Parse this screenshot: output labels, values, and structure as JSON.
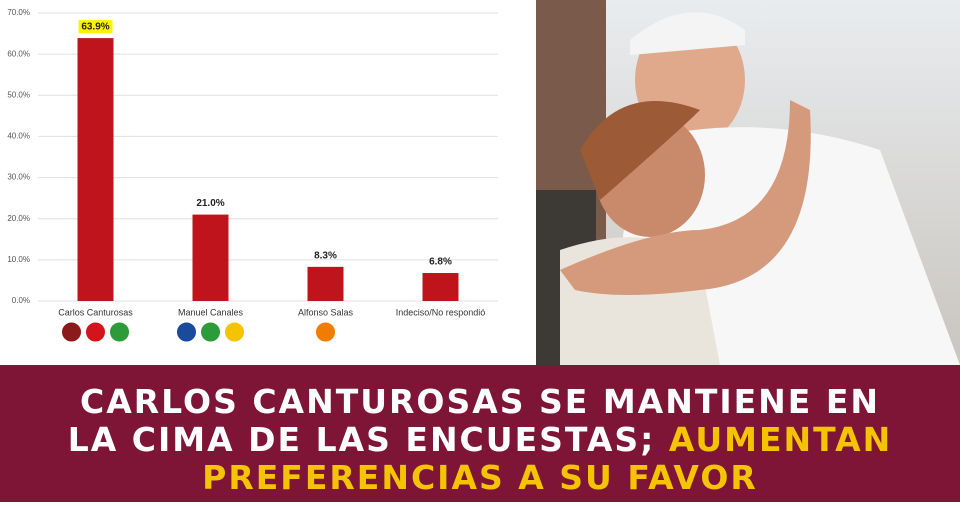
{
  "chart_data": {
    "type": "bar",
    "categories": [
      "Carlos Canturosas",
      "Manuel Canales",
      "Alfonso Salas",
      "Indeciso/No respondió"
    ],
    "values": [
      63.9,
      21.0,
      8.3,
      6.8
    ],
    "value_labels": [
      "63.9%",
      "21.0%",
      "8.3%",
      "6.8%"
    ],
    "color": "#c0141c",
    "highlight": {
      "index": 0,
      "color": "#fff200"
    },
    "ylim": [
      0,
      70
    ],
    "yticks": [
      {
        "value": 0,
        "label": "0.0%"
      },
      {
        "value": 10,
        "label": "10.0%"
      },
      {
        "value": 20,
        "label": "20.0%"
      },
      {
        "value": 30,
        "label": "30.0%"
      },
      {
        "value": 40,
        "label": "40.0%"
      },
      {
        "value": 50,
        "label": "50.0%"
      },
      {
        "value": 60,
        "label": "60.0%"
      },
      {
        "value": 70,
        "label": "70.0%"
      }
    ],
    "grid": true
  },
  "headline": {
    "lines": [
      [
        {
          "text": "CARLOS CANTUROSAS SE MANTIENE EN",
          "color": "#ffffff"
        }
      ],
      [
        {
          "text": "LA CIMA DE LAS ENCUESTAS; ",
          "color": "#ffffff"
        },
        {
          "text": "AUMENTAN",
          "color": "#f5c400"
        }
      ],
      [
        {
          "text": "PREFERENCIAS A SU FAVOR",
          "color": "#f5c400"
        }
      ]
    ]
  }
}
